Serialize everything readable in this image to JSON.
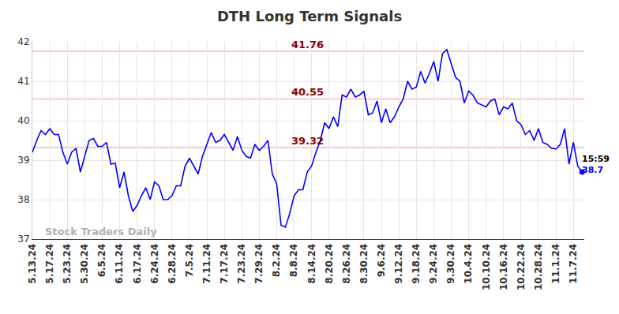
{
  "chart_data": {
    "type": "line",
    "title": "DTH Long Term Signals",
    "categories": [
      "5.13.24",
      null,
      null,
      null,
      "5.17.24",
      null,
      null,
      null,
      "5.23.24",
      null,
      null,
      null,
      "5.30.24",
      null,
      null,
      null,
      "6.5.24",
      null,
      null,
      null,
      "6.11.24",
      null,
      null,
      null,
      "6.17.24",
      null,
      null,
      null,
      "6.24.24",
      null,
      null,
      null,
      "6.28.24",
      null,
      null,
      null,
      "7.5.24",
      null,
      null,
      null,
      "7.11.24",
      null,
      null,
      null,
      "7.17.24",
      null,
      null,
      null,
      "7.23.24",
      null,
      null,
      null,
      "7.29.24",
      null,
      null,
      null,
      "8.2.24",
      null,
      null,
      null,
      "8.8.24",
      null,
      null,
      null,
      "8.14.24",
      null,
      null,
      null,
      "8.20.24",
      null,
      null,
      null,
      "8.26.24",
      null,
      null,
      null,
      "8.30.24",
      null,
      null,
      null,
      "9.6.24",
      null,
      null,
      null,
      "9.12.24",
      null,
      null,
      null,
      "9.18.24",
      null,
      null,
      null,
      "9.24.24",
      null,
      null,
      null,
      "9.30.24",
      null,
      null,
      null,
      "10.4.24",
      null,
      null,
      null,
      "10.10.24",
      null,
      null,
      null,
      "10.16.24",
      null,
      null,
      null,
      "10.22.24",
      null,
      null,
      null,
      "10.28.24",
      null,
      null,
      null,
      "11.1.24",
      null,
      null,
      null,
      "11.7.24",
      null,
      null
    ],
    "values": [
      39.2,
      39.5,
      39.75,
      39.65,
      39.8,
      39.65,
      39.65,
      39.2,
      38.9,
      39.2,
      39.3,
      38.7,
      39.1,
      39.5,
      39.55,
      39.35,
      39.35,
      39.45,
      38.9,
      38.92,
      38.3,
      38.7,
      38.1,
      37.7,
      37.85,
      38.1,
      38.3,
      38.0,
      38.45,
      38.35,
      38.0,
      38.0,
      38.1,
      38.35,
      38.35,
      38.85,
      39.05,
      38.85,
      38.65,
      39.1,
      39.4,
      39.7,
      39.45,
      39.5,
      39.65,
      39.45,
      39.25,
      39.6,
      39.25,
      39.1,
      39.05,
      39.4,
      39.25,
      39.35,
      39.5,
      38.65,
      38.4,
      37.35,
      37.3,
      37.65,
      38.1,
      38.25,
      38.25,
      38.7,
      38.85,
      39.2,
      39.5,
      39.95,
      39.8,
      40.1,
      39.85,
      40.65,
      40.6,
      40.8,
      40.6,
      40.65,
      40.75,
      40.15,
      40.2,
      40.5,
      39.95,
      40.3,
      39.95,
      40.1,
      40.35,
      40.55,
      41.0,
      40.8,
      40.85,
      41.25,
      40.95,
      41.2,
      41.5,
      41.0,
      41.7,
      41.8,
      41.45,
      41.1,
      41.0,
      40.45,
      40.75,
      40.65,
      40.45,
      40.4,
      40.35,
      40.5,
      40.55,
      40.15,
      40.35,
      40.3,
      40.45,
      40.0,
      39.9,
      39.65,
      39.75,
      39.5,
      39.8,
      39.45,
      39.4,
      39.3,
      39.28,
      39.4,
      39.8,
      38.9,
      39.45,
      38.85,
      38.7
    ],
    "color": "#0000ff",
    "ylim": [
      37,
      42
    ],
    "yticks": [
      37,
      38,
      39,
      40,
      41,
      42
    ],
    "grid": true,
    "levels": [
      41.76,
      40.55,
      39.32
    ],
    "watermark": "Stock Traders Daily",
    "end_label": {
      "time": "15:59",
      "value": 38.7
    }
  }
}
